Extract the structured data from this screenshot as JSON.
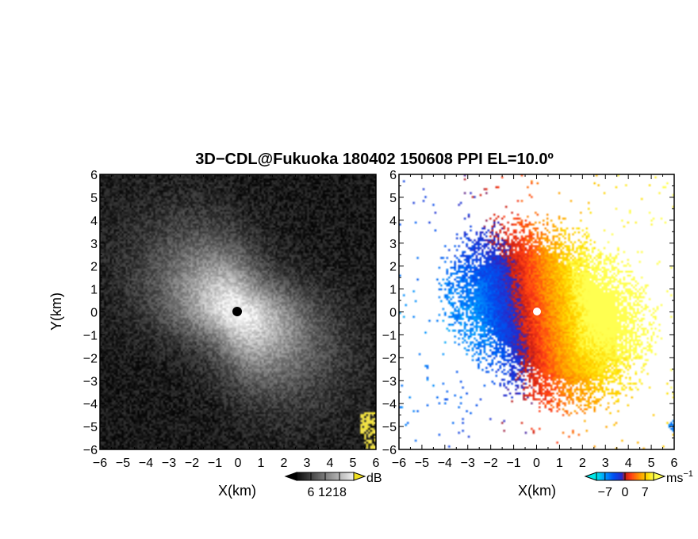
{
  "chart_data": [
    {
      "type": "heatmap",
      "panel": "left",
      "title": "3D−CDL@Fukuoka 180402 150608 PPI EL=10.0º",
      "xlabel": "X(km)",
      "ylabel": "Y(km)",
      "xlim": [
        -6,
        6
      ],
      "ylim": [
        -6,
        6
      ],
      "x_ticks": [
        "−6",
        "−5",
        "−4",
        "−3",
        "−2",
        "−1",
        "0",
        "1",
        "2",
        "3",
        "4",
        "5",
        "6"
      ],
      "y_ticks": [
        "−6",
        "−5",
        "−4",
        "−3",
        "−2",
        "−1",
        "0",
        "1",
        "2",
        "3",
        "4",
        "5",
        "6"
      ],
      "variable": "SNR",
      "colorbar": {
        "unit": "dB",
        "ticks": [
          "6",
          "12",
          "18"
        ],
        "tick_values": [
          6,
          12,
          18
        ],
        "range": [
          0,
          24
        ],
        "colormap": "grayscale"
      },
      "radar_location": [
        0,
        0
      ]
    },
    {
      "type": "heatmap",
      "panel": "right",
      "xlabel": "X(km)",
      "ylabel": "",
      "xlim": [
        -6,
        6
      ],
      "ylim": [
        -6,
        6
      ],
      "x_ticks": [
        "−6",
        "−5",
        "−4",
        "−3",
        "−2",
        "−1",
        "0",
        "1",
        "2",
        "3",
        "4",
        "5",
        "6"
      ],
      "y_ticks": [
        "−6",
        "−5",
        "−4",
        "−3",
        "−2",
        "−1",
        "0",
        "1",
        "2",
        "3",
        "4",
        "5",
        "6"
      ],
      "variable": "Doppler velocity",
      "colorbar": {
        "unit": "ms",
        "unit_exponent": "−1",
        "ticks": [
          "−7",
          "0",
          "7"
        ],
        "tick_values": [
          -7,
          0,
          7
        ],
        "range": [
          -10,
          10
        ],
        "colormap": "cyan-blue-red-orange-yellow"
      },
      "radar_location": [
        0,
        0
      ],
      "pattern": "negative (approaching) velocities to the west, positive (receding) to the east"
    }
  ],
  "colors": {
    "background": "#ffffff",
    "frame": "#000000",
    "radar_marker_left": "#000000",
    "radar_marker_right": "#ffffff"
  }
}
